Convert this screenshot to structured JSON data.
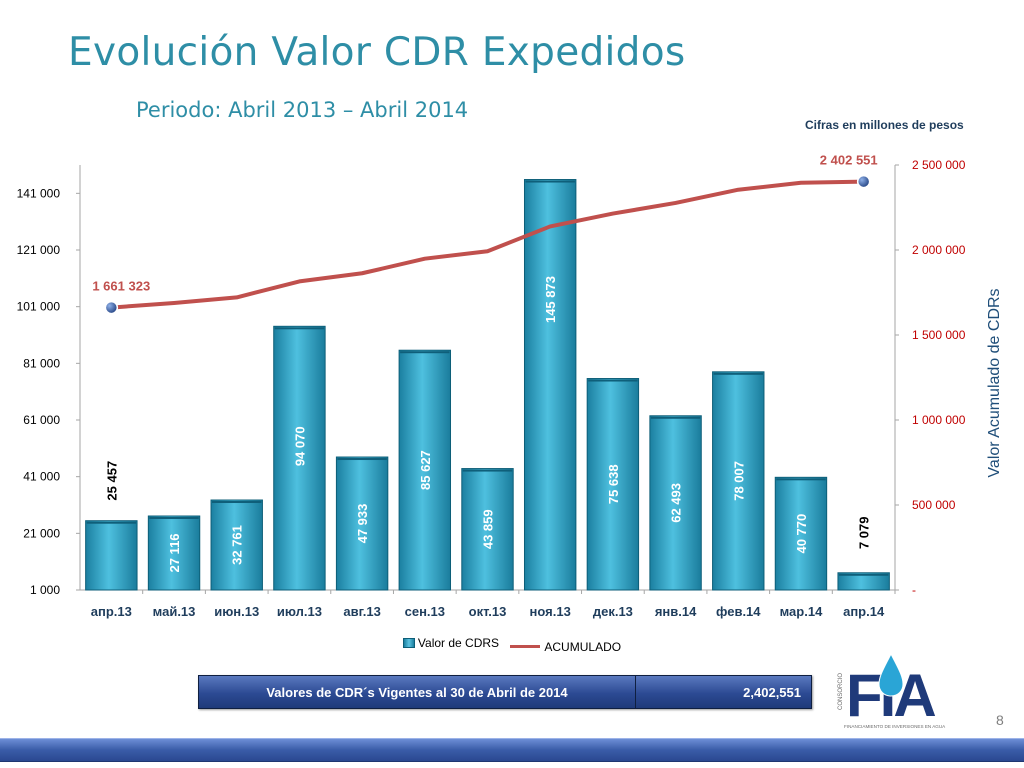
{
  "title": "Evolución Valor CDR Expedidos",
  "subtitle": "Periodo: Abril 2013 – Abril 2014",
  "units_note": "Cifras en millones de pesos",
  "legend": {
    "bar_label": "Valor de CDRS",
    "line_label": "ACUMULADO"
  },
  "summary": {
    "label": "Valores de CDR´s Vigentes al 30 de Abril de 2014",
    "value": "2,402,551"
  },
  "logo": {
    "side_text": "CONSORCIO",
    "main_text": "FIA",
    "tagline": "FINANCIAMIENTO DE INVERSIONES EN AGUA"
  },
  "page_number": "8",
  "colors": {
    "bar": "#23a3c8",
    "line": "#c0504d",
    "title": "#2e8ea6",
    "right_axis_text": "#c00000",
    "marker": "#2f5597"
  },
  "chart_data": {
    "type": "bar",
    "categories": [
      "апр.13",
      "май.13",
      "июн.13",
      "июл.13",
      "авг.13",
      "сен.13",
      "окт.13",
      "ноя.13",
      "дек.13",
      "янв.14",
      "фев.14",
      "мар.14",
      "апр.14"
    ],
    "series": [
      {
        "name": "Valor de CDRS",
        "type": "bar",
        "axis": "left",
        "values": [
          25457,
          27116,
          32761,
          94070,
          47933,
          85627,
          43859,
          145873,
          75638,
          62493,
          78007,
          40770,
          7079
        ],
        "labels": [
          "25 457",
          "27 116",
          "32 761",
          "94 070",
          "47 933",
          "85 627",
          "43 859",
          "145 873",
          "75 638",
          "62 493",
          "78 007",
          "40 770",
          "7 079"
        ]
      },
      {
        "name": "ACUMULADO",
        "type": "line",
        "axis": "right",
        "values": [
          1661323,
          1688439,
          1721200,
          1815270,
          1863203,
          1948830,
          1992689,
          2138562,
          2214200,
          2276693,
          2354700,
          2395472,
          2402551
        ],
        "point_labels": [
          {
            "index": 0,
            "text": "1 661 323"
          },
          {
            "index": 12,
            "text": "2 402 551"
          }
        ]
      }
    ],
    "y_left": {
      "ylim": [
        1000,
        151000
      ],
      "ticks": [
        1000,
        21000,
        41000,
        61000,
        81000,
        101000,
        121000,
        141000
      ],
      "tick_labels": [
        "1 000",
        "21 000",
        "41 000",
        "61 000",
        "81 000",
        "101 000",
        "121 000",
        "141 000"
      ]
    },
    "y_right": {
      "label": "Valor Acumulado de CDRs",
      "ylim": [
        0,
        2500000
      ],
      "ticks": [
        0,
        500000,
        1000000,
        1500000,
        2000000,
        2500000
      ],
      "tick_labels": [
        "-",
        "500 000",
        "1 000 000",
        "1 500 000",
        "2 000 000",
        "2 500 000"
      ]
    },
    "grid": false,
    "legend_position": "bottom"
  }
}
